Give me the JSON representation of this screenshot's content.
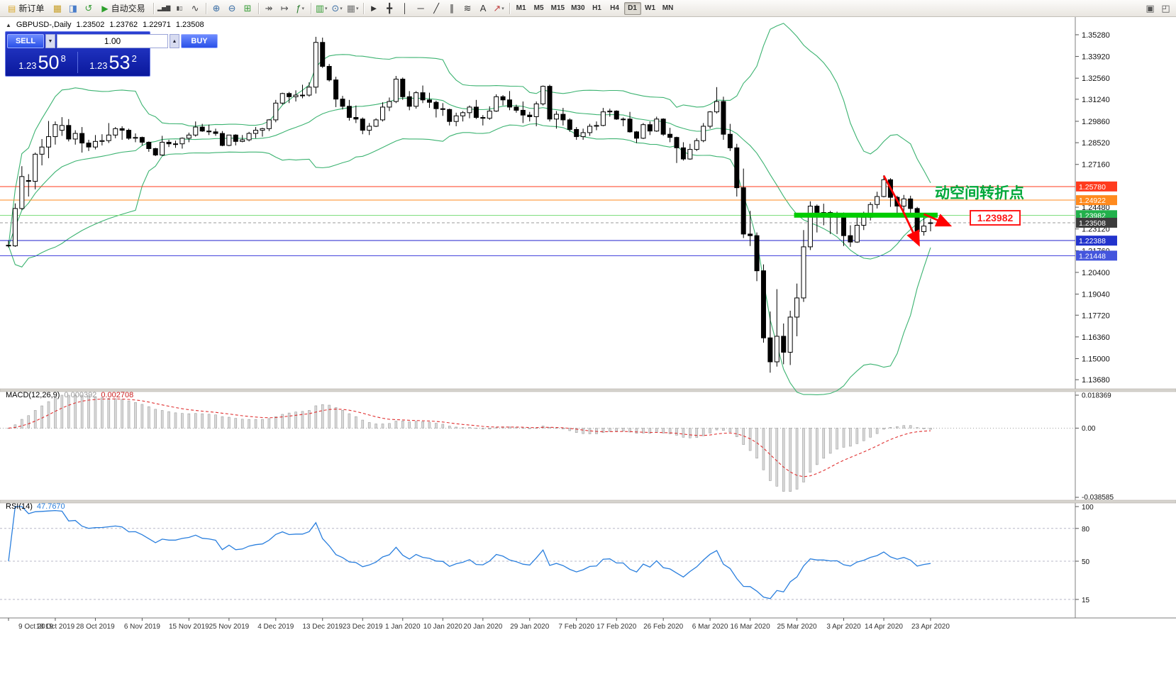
{
  "toolbar": {
    "timeframes": [
      "M1",
      "M5",
      "M15",
      "M30",
      "H1",
      "H4",
      "D1",
      "W1",
      "MN"
    ],
    "active_timeframe": "D1",
    "items": [
      {
        "type": "button",
        "name": "new-order-button",
        "icon_name": "new-order-icon",
        "glyph": "▤",
        "glyph_color": "#d9a82e",
        "label": "新订单"
      },
      {
        "type": "icon",
        "name": "market-watch-icon",
        "glyph": "▦",
        "color": "#c8a02a"
      },
      {
        "type": "icon",
        "name": "data-window-icon",
        "glyph": "◨",
        "color": "#4a7dc9"
      },
      {
        "type": "icon",
        "name": "refresh-icon",
        "glyph": "↺",
        "color": "#3a9e3a"
      },
      {
        "type": "button",
        "name": "auto-trading-button",
        "icon_name": "auto-trading-play-icon",
        "glyph": "▶",
        "glyph_color": "#2ca02c",
        "label": "自动交易"
      },
      {
        "type": "sep"
      },
      {
        "type": "icon",
        "name": "bar-chart-icon",
        "glyph": "▂▅▇",
        "color": "#444",
        "small": true
      },
      {
        "type": "icon",
        "name": "candlestick-chart-icon",
        "glyph": "▮▯",
        "color": "#444",
        "small": true
      },
      {
        "type": "icon",
        "name": "line-chart-icon",
        "glyph": "∿",
        "color": "#444"
      },
      {
        "type": "sep"
      },
      {
        "type": "icon",
        "name": "zoom-in-icon",
        "glyph": "⊕",
        "color": "#3a6ea5"
      },
      {
        "type": "icon",
        "name": "zoom-out-icon",
        "glyph": "⊖",
        "color": "#3a6ea5"
      },
      {
        "type": "icon",
        "name": "tile-windows-icon",
        "glyph": "⊞",
        "color": "#3a9e3a"
      },
      {
        "type": "sep"
      },
      {
        "type": "icon",
        "name": "auto-scroll-icon",
        "glyph": "↠",
        "color": "#555"
      },
      {
        "type": "icon",
        "name": "chart-shift-icon",
        "glyph": "↦",
        "color": "#555"
      },
      {
        "type": "icon",
        "name": "indicators-icon",
        "glyph": "ƒ",
        "color": "#2e7d32",
        "caret": true
      },
      {
        "type": "sep"
      },
      {
        "type": "icon",
        "name": "new-chart-icon",
        "glyph": "▥",
        "color": "#3a9e3a",
        "caret": true
      },
      {
        "type": "icon",
        "name": "profiles-icon",
        "glyph": "⊙",
        "color": "#3a6ea5",
        "caret": true
      },
      {
        "type": "icon",
        "name": "templates-icon",
        "glyph": "▦",
        "color": "#777",
        "caret": true
      },
      {
        "type": "sep"
      },
      {
        "type": "icon",
        "name": "cursor-icon",
        "glyph": "►",
        "color": "#333"
      },
      {
        "type": "icon",
        "name": "crosshair-icon",
        "glyph": "╋",
        "color": "#333"
      },
      {
        "type": "icon",
        "name": "vertical-line-icon",
        "glyph": "│",
        "color": "#333"
      },
      {
        "type": "icon",
        "name": "horizontal-line-icon",
        "glyph": "─",
        "color": "#333"
      },
      {
        "type": "icon",
        "name": "trendline-icon",
        "glyph": "╱",
        "color": "#333"
      },
      {
        "type": "icon",
        "name": "channel-icon",
        "glyph": "∥",
        "color": "#333"
      },
      {
        "type": "icon",
        "name": "fibonacci-icon",
        "glyph": "≋",
        "color": "#333"
      },
      {
        "type": "icon",
        "name": "text-icon",
        "glyph": "A",
        "color": "#333"
      },
      {
        "type": "icon",
        "name": "arrows-icon",
        "glyph": "↗",
        "color": "#c04040",
        "caret": true
      },
      {
        "type": "sep"
      }
    ],
    "right_icons": [
      {
        "name": "windows-icon",
        "glyph": "▣",
        "color": "#555"
      },
      {
        "name": "fullscreen-icon",
        "glyph": "◰",
        "color": "#555"
      }
    ]
  },
  "chart": {
    "symbol_label": "GBPUSD-,Daily",
    "open": "1.23502",
    "high": "1.23762",
    "low": "1.22971",
    "close": "1.23508"
  },
  "trade_panel": {
    "sell_label": "SELL",
    "buy_label": "BUY",
    "volume": "1.00",
    "sell_big_figure": "1.23",
    "sell_pips": "50",
    "sell_pipette": "8",
    "buy_big_figure": "1.23",
    "buy_pips": "53",
    "buy_pipette": "2"
  },
  "annotations": {
    "turning_point_text": "动空间转折点",
    "turning_point_color": "#00a83a",
    "price_tag": "1.23982",
    "price_tag_color": "#ff1a1a",
    "highlight_price": 1.23982,
    "highlight_color": "#00cc00",
    "highlight_from_index": 118,
    "highlight_to_index": 138,
    "arrow_color": "#ff0000",
    "arrow1_points": [
      [
        131,
        1.2645
      ],
      [
        133.8,
        1.243
      ],
      [
        136.2,
        1.2218
      ]
    ],
    "arrow2_points": [
      [
        137.0,
        1.2405
      ],
      [
        140.8,
        1.2335
      ]
    ]
  },
  "levels": [
    {
      "price": 1.2578,
      "label": "1.25780",
      "line_color": "#ff3b1e",
      "label_bg": "#ff3b1e"
    },
    {
      "price": 1.24922,
      "label": "1.24922",
      "line_color": "#ff8a1e",
      "label_bg": "#ff8a1e"
    },
    {
      "price": 1.23982,
      "label": "1.23982",
      "line_color": "#7fdd7f",
      "label_bg": "#22b14c"
    },
    {
      "price": 1.22388,
      "label": "1.22388",
      "line_color": "#2222cc",
      "label_bg": "#2233cc"
    },
    {
      "price": 1.21448,
      "label": "1.21448",
      "line_color": "#4444dd",
      "label_bg": "#4455dd"
    }
  ],
  "current_price": {
    "value": 1.23508,
    "label": "1.23508",
    "label_bg": "#3c3c3c",
    "line_color": "#9a9a9a"
  },
  "price_axis": {
    "ticks": [
      "1.35280",
      "1.33920",
      "1.32560",
      "1.31240",
      "1.29860",
      "1.28520",
      "1.27160",
      "1.24480",
      "1.23120",
      "1.21760",
      "1.20400",
      "1.19040",
      "1.17720",
      "1.16360",
      "1.15000",
      "1.13680"
    ]
  },
  "date_axis": {
    "labels": [
      {
        "text": "9 Oct 2019",
        "index": 0
      },
      {
        "text": "18 Oct 2019",
        "index": 7
      },
      {
        "text": "28 Oct 2019",
        "index": 13
      },
      {
        "text": "6 Nov 2019",
        "index": 20
      },
      {
        "text": "15 Nov 2019",
        "index": 27
      },
      {
        "text": "25 Nov 2019",
        "index": 33
      },
      {
        "text": "4 Dec 2019",
        "index": 40
      },
      {
        "text": "13 Dec 2019",
        "index": 47
      },
      {
        "text": "23 Dec 2019",
        "index": 53
      },
      {
        "text": "1 Jan 2020",
        "index": 59
      },
      {
        "text": "10 Jan 2020",
        "index": 65
      },
      {
        "text": "20 Jan 2020",
        "index": 71
      },
      {
        "text": "29 Jan 2020",
        "index": 78
      },
      {
        "text": "7 Feb 2020",
        "index": 85
      },
      {
        "text": "17 Feb 2020",
        "index": 91
      },
      {
        "text": "26 Feb 2020",
        "index": 98
      },
      {
        "text": "6 Mar 2020",
        "index": 105
      },
      {
        "text": "16 Mar 2020",
        "index": 111
      },
      {
        "text": "25 Mar 2020",
        "index": 118
      },
      {
        "text": "3 Apr 2020",
        "index": 125
      },
      {
        "text": "14 Apr 2020",
        "index": 131
      },
      {
        "text": "23 Apr 2020",
        "index": 138
      }
    ]
  },
  "macd_panel": {
    "label": "MACD(12,26,9)",
    "value1": "0.000392",
    "value2": "0.002708",
    "axis": [
      {
        "text": "0.018369",
        "value": 0.018369
      },
      {
        "text": "0.00",
        "value": 0
      },
      {
        "text": "-0.038585",
        "value": -0.038585
      }
    ],
    "range": [
      -0.038585,
      0.018369
    ]
  },
  "rsi_panel": {
    "label": "RSI(14)",
    "value": "47.7670",
    "axis": [
      {
        "text": "100",
        "value": 100
      },
      {
        "text": "80",
        "value": 80
      },
      {
        "text": "50",
        "value": 50
      },
      {
        "text": "15",
        "value": 15
      }
    ],
    "levels": [
      80,
      50,
      15
    ]
  },
  "chart_data": {
    "type": "candlestick",
    "symbol": "GBPUSD",
    "period": "Daily",
    "visible_price_range": [
      1.132,
      1.363
    ],
    "overlays": [
      "Bollinger Bands(20,2)"
    ],
    "indicators": [
      "MACD(12,26,9)",
      "RSI(14)"
    ],
    "candles": [
      [
        1.221,
        1.2238,
        1.2196,
        1.2206
      ],
      [
        1.2206,
        1.2472,
        1.22,
        1.244
      ],
      [
        1.244,
        1.2705,
        1.243,
        1.264
      ],
      [
        1.2615,
        1.2655,
        1.2515,
        1.261
      ],
      [
        1.261,
        1.279,
        1.256,
        1.278
      ],
      [
        1.278,
        1.2875,
        1.271,
        1.2825
      ],
      [
        1.2825,
        1.2988,
        1.2755,
        1.289
      ],
      [
        1.289,
        1.2985,
        1.284,
        1.2965
      ],
      [
        1.293,
        1.3012,
        1.2895,
        1.296
      ],
      [
        1.296,
        1.3,
        1.286,
        1.2875
      ],
      [
        1.2875,
        1.293,
        1.284,
        1.291
      ],
      [
        1.291,
        1.295,
        1.279,
        1.285
      ],
      [
        1.285,
        1.287,
        1.28,
        1.2825
      ],
      [
        1.2825,
        1.29,
        1.281,
        1.286
      ],
      [
        1.286,
        1.2905,
        1.2835,
        1.2865
      ],
      [
        1.2865,
        1.2975,
        1.285,
        1.29
      ],
      [
        1.29,
        1.295,
        1.288,
        1.294
      ],
      [
        1.294,
        1.2955,
        1.287,
        1.293
      ],
      [
        1.293,
        1.294,
        1.287,
        1.288
      ],
      [
        1.288,
        1.291,
        1.2855,
        1.2885
      ],
      [
        1.2885,
        1.289,
        1.2835,
        1.2855
      ],
      [
        1.2855,
        1.286,
        1.2795,
        1.2815
      ],
      [
        1.2815,
        1.282,
        1.2768,
        1.2775
      ],
      [
        1.2775,
        1.2895,
        1.277,
        1.2855
      ],
      [
        1.2855,
        1.287,
        1.2825,
        1.2845
      ],
      [
        1.2845,
        1.2865,
        1.282,
        1.2845
      ],
      [
        1.2845,
        1.2885,
        1.2815,
        1.288
      ],
      [
        1.288,
        1.2915,
        1.2855,
        1.29
      ],
      [
        1.29,
        1.2985,
        1.289,
        1.295
      ],
      [
        1.295,
        1.297,
        1.292,
        1.2925
      ],
      [
        1.2925,
        1.2965,
        1.29,
        1.292
      ],
      [
        1.292,
        1.294,
        1.2895,
        1.291
      ],
      [
        1.291,
        1.2925,
        1.283,
        1.2835
      ],
      [
        1.2835,
        1.29,
        1.283,
        1.29
      ],
      [
        1.29,
        1.2905,
        1.2835,
        1.286
      ],
      [
        1.286,
        1.29,
        1.2855,
        1.287
      ],
      [
        1.287,
        1.292,
        1.286,
        1.291
      ],
      [
        1.291,
        1.295,
        1.288,
        1.293
      ],
      [
        1.293,
        1.2945,
        1.289,
        1.294
      ],
      [
        1.294,
        1.3,
        1.2925,
        1.2995
      ],
      [
        1.2995,
        1.312,
        1.298,
        1.31
      ],
      [
        1.31,
        1.3165,
        1.309,
        1.316
      ],
      [
        1.316,
        1.317,
        1.31,
        1.314
      ],
      [
        1.314,
        1.318,
        1.311,
        1.315
      ],
      [
        1.315,
        1.3215,
        1.313,
        1.315
      ],
      [
        1.315,
        1.323,
        1.314,
        1.32
      ],
      [
        1.32,
        1.3515,
        1.316,
        1.348
      ],
      [
        1.348,
        1.351,
        1.332,
        1.333
      ],
      [
        1.333,
        1.3345,
        1.3235,
        1.3245
      ],
      [
        1.3245,
        1.3265,
        1.3075,
        1.3125
      ],
      [
        1.3125,
        1.3145,
        1.306,
        1.308
      ],
      [
        1.308,
        1.312,
        1.299,
        1.301
      ],
      [
        1.301,
        1.3085,
        1.2975,
        1.3
      ],
      [
        1.3,
        1.301,
        1.2905,
        1.293
      ],
      [
        1.293,
        1.2975,
        1.29,
        1.2955
      ],
      [
        1.2955,
        1.3005,
        1.295,
        1.2995
      ],
      [
        1.2995,
        1.3105,
        1.2985,
        1.3075
      ],
      [
        1.3075,
        1.3135,
        1.305,
        1.311
      ],
      [
        1.311,
        1.327,
        1.31,
        1.325
      ],
      [
        1.325,
        1.326,
        1.312,
        1.314
      ],
      [
        1.314,
        1.3175,
        1.3055,
        1.308
      ],
      [
        1.308,
        1.3175,
        1.3065,
        1.3165
      ],
      [
        1.3165,
        1.321,
        1.31,
        1.312
      ],
      [
        1.312,
        1.3165,
        1.307,
        1.3105
      ],
      [
        1.3105,
        1.3115,
        1.301,
        1.3065
      ],
      [
        1.3065,
        1.31,
        1.302,
        1.306
      ],
      [
        1.306,
        1.3065,
        1.296,
        1.2985
      ],
      [
        1.2985,
        1.304,
        1.2955,
        1.302
      ],
      [
        1.302,
        1.305,
        1.2985,
        1.304
      ],
      [
        1.304,
        1.3085,
        1.3005,
        1.3075
      ],
      [
        1.3075,
        1.312,
        1.3,
        1.301
      ],
      [
        1.301,
        1.3025,
        1.296,
        1.3005
      ],
      [
        1.3005,
        1.308,
        1.2995,
        1.305
      ],
      [
        1.305,
        1.3155,
        1.3045,
        1.314
      ],
      [
        1.314,
        1.315,
        1.3085,
        1.312
      ],
      [
        1.312,
        1.3175,
        1.3055,
        1.3075
      ],
      [
        1.3075,
        1.309,
        1.304,
        1.3055
      ],
      [
        1.3055,
        1.311,
        1.2975,
        1.3025
      ],
      [
        1.3025,
        1.3045,
        1.2985,
        1.3015
      ],
      [
        1.3015,
        1.311,
        1.2955,
        1.3095
      ],
      [
        1.3095,
        1.321,
        1.3085,
        1.3205
      ],
      [
        1.3205,
        1.3215,
        1.2985,
        1.3
      ],
      [
        1.3,
        1.305,
        1.294,
        1.303
      ],
      [
        1.303,
        1.307,
        1.296,
        1.2995
      ],
      [
        1.2995,
        1.3005,
        1.292,
        1.2935
      ],
      [
        1.2935,
        1.295,
        1.287,
        1.289
      ],
      [
        1.289,
        1.294,
        1.287,
        1.2915
      ],
      [
        1.2915,
        1.297,
        1.2895,
        1.2955
      ],
      [
        1.2955,
        1.2985,
        1.293,
        1.296
      ],
      [
        1.296,
        1.307,
        1.2955,
        1.3045
      ],
      [
        1.3045,
        1.3065,
        1.3015,
        1.305
      ],
      [
        1.305,
        1.3055,
        1.2995,
        1.3
      ],
      [
        1.3,
        1.301,
        1.2955,
        1.3
      ],
      [
        1.3,
        1.3045,
        1.2915,
        1.292
      ],
      [
        1.292,
        1.2925,
        1.285,
        1.288
      ],
      [
        1.288,
        1.2975,
        1.2875,
        1.2965
      ],
      [
        1.2965,
        1.2985,
        1.29,
        1.2925
      ],
      [
        1.2925,
        1.3015,
        1.292,
        1.3
      ],
      [
        1.3,
        1.3005,
        1.2895,
        1.2905
      ],
      [
        1.2905,
        1.2945,
        1.2855,
        1.2885
      ],
      [
        1.2885,
        1.289,
        1.2725,
        1.282
      ],
      [
        1.282,
        1.2855,
        1.274,
        1.275
      ],
      [
        1.275,
        1.2845,
        1.2745,
        1.281
      ],
      [
        1.281,
        1.288,
        1.28,
        1.2865
      ],
      [
        1.2865,
        1.2975,
        1.2855,
        1.2955
      ],
      [
        1.2955,
        1.305,
        1.294,
        1.3045
      ],
      [
        1.3045,
        1.32,
        1.3035,
        1.311
      ],
      [
        1.311,
        1.314,
        1.287,
        1.2905
      ],
      [
        1.2905,
        1.297,
        1.28,
        1.282
      ],
      [
        1.282,
        1.2845,
        1.2515,
        1.257
      ],
      [
        1.257,
        1.269,
        1.2255,
        1.228
      ],
      [
        1.228,
        1.2425,
        1.2205,
        1.227
      ],
      [
        1.227,
        1.229,
        1.1985,
        1.205
      ],
      [
        1.205,
        1.209,
        1.16,
        1.163
      ],
      [
        1.163,
        1.1795,
        1.1412,
        1.148
      ],
      [
        1.148,
        1.1935,
        1.145,
        1.164
      ],
      [
        1.164,
        1.172,
        1.1465,
        1.154
      ],
      [
        1.154,
        1.18,
        1.146,
        1.176
      ],
      [
        1.176,
        1.197,
        1.164,
        1.188
      ],
      [
        1.188,
        1.2305,
        1.1855,
        1.22
      ],
      [
        1.22,
        1.2485,
        1.218,
        1.2455
      ],
      [
        1.2455,
        1.2465,
        1.229,
        1.2415
      ],
      [
        1.2415,
        1.247,
        1.2335,
        1.2415
      ],
      [
        1.2415,
        1.2425,
        1.228,
        1.2385
      ],
      [
        1.2385,
        1.242,
        1.228,
        1.239
      ],
      [
        1.239,
        1.2415,
        1.2205,
        1.227
      ],
      [
        1.227,
        1.2335,
        1.22,
        1.223
      ],
      [
        1.223,
        1.2385,
        1.2225,
        1.2335
      ],
      [
        1.2335,
        1.242,
        1.2305,
        1.2385
      ],
      [
        1.2385,
        1.248,
        1.2365,
        1.2465
      ],
      [
        1.2465,
        1.2545,
        1.244,
        1.2515
      ],
      [
        1.2515,
        1.2648,
        1.251,
        1.262
      ],
      [
        1.262,
        1.263,
        1.245,
        1.251
      ],
      [
        1.251,
        1.252,
        1.2405,
        1.2455
      ],
      [
        1.2455,
        1.2525,
        1.2425,
        1.25
      ],
      [
        1.25,
        1.252,
        1.2405,
        1.244
      ],
      [
        1.244,
        1.245,
        1.2245,
        1.2295
      ],
      [
        1.2295,
        1.239,
        1.227,
        1.233
      ],
      [
        1.23502,
        1.23762,
        1.22971,
        1.23508
      ]
    ]
  }
}
